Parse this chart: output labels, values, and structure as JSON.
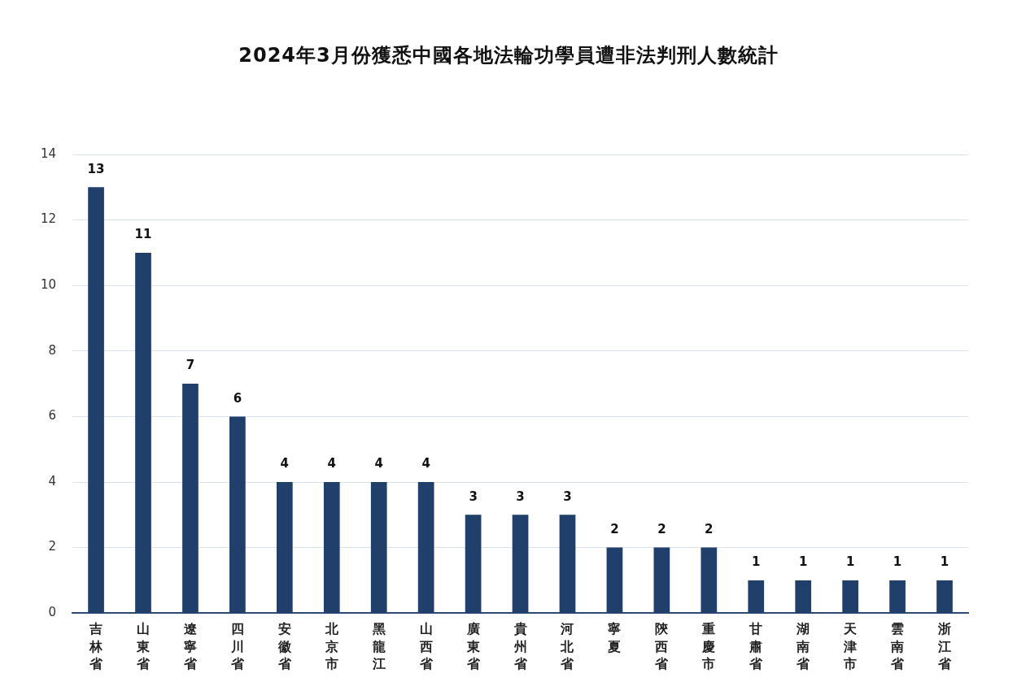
{
  "chart_data": {
    "type": "bar",
    "title": "2024年3月份獲悉中國各地法輪功學員遭非法判刑人數統計",
    "categories": [
      "吉林省",
      "山東省",
      "遼寧省",
      "四川省",
      "安徽省",
      "北京市",
      "黑龍江",
      "山西省",
      "廣東省",
      "貴州省",
      "河北省",
      "寧夏",
      "陝西省",
      "重慶市",
      "甘肅省",
      "湖南省",
      "天津市",
      "雲南省",
      "浙江省"
    ],
    "values": [
      13,
      11,
      7,
      6,
      4,
      4,
      4,
      4,
      3,
      3,
      3,
      2,
      2,
      2,
      1,
      1,
      1,
      1,
      1
    ],
    "color": "#213f6b",
    "ylim": [
      0,
      14
    ],
    "yticks": [
      0,
      2,
      4,
      6,
      8,
      10,
      12,
      14
    ],
    "grid": "y",
    "data_labels": true
  }
}
